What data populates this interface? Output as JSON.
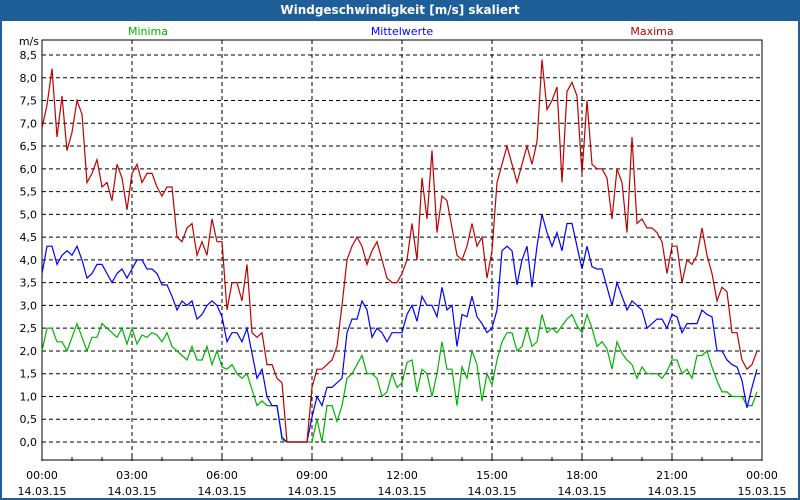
{
  "chart_data": {
    "type": "line",
    "title": "Windgeschwindigkeit [m/s] skaliert",
    "ylabel": "m/s",
    "ylim": [
      0,
      8.5
    ],
    "y_ticks": [
      "0,0",
      "0,5",
      "1,0",
      "1,5",
      "2,0",
      "2,5",
      "3,0",
      "3,5",
      "4,0",
      "4,5",
      "5,0",
      "5,5",
      "6,0",
      "6,5",
      "7,0",
      "7,5",
      "8,0",
      "8,5"
    ],
    "x_range_hours": [
      0,
      24
    ],
    "x_ticks": [
      {
        "time": "00:00",
        "date": "14.03.15"
      },
      {
        "time": "03:00",
        "date": "14.03.15"
      },
      {
        "time": "06:00",
        "date": "14.03.15"
      },
      {
        "time": "09:00",
        "date": "14.03.15"
      },
      {
        "time": "12:00",
        "date": "14.03.15"
      },
      {
        "time": "15:00",
        "date": "14.03.15"
      },
      {
        "time": "18:00",
        "date": "14.03.15"
      },
      {
        "time": "21:00",
        "date": "14.03.15"
      },
      {
        "time": "00:00",
        "date": "15.03.15"
      }
    ],
    "grid": true,
    "sample_interval_minutes": 10,
    "series": [
      {
        "name": "Minima",
        "color": "#00b400",
        "values": [
          2.0,
          2.5,
          2.5,
          2.2,
          2.2,
          2.0,
          2.3,
          2.6,
          2.3,
          2.0,
          2.3,
          2.3,
          2.6,
          2.5,
          2.4,
          2.3,
          2.5,
          2.15,
          2.5,
          2.15,
          2.35,
          2.3,
          2.4,
          2.35,
          2.2,
          2.4,
          2.1,
          2.0,
          1.9,
          1.8,
          2.1,
          1.8,
          1.8,
          2.1,
          1.7,
          2.0,
          1.65,
          1.6,
          1.7,
          1.5,
          1.4,
          1.5,
          1.15,
          0.8,
          0.9,
          0.8,
          0.8,
          0.8,
          0.05,
          0,
          0,
          0,
          0,
          0,
          0,
          0.5,
          0,
          0.8,
          0.8,
          0.45,
          0.8,
          1.4,
          1.5,
          1.7,
          1.9,
          1.5,
          1.5,
          1.4,
          1.0,
          1.1,
          1.5,
          1.2,
          1.3,
          1.75,
          1.8,
          1.1,
          1.6,
          1.5,
          1.0,
          1.5,
          2.2,
          1.6,
          1.6,
          0.8,
          1.65,
          1.4,
          2.0,
          1.7,
          0.9,
          1.5,
          1.25,
          1.8,
          2.2,
          2.4,
          2.4,
          2.0,
          2.1,
          2.5,
          2.1,
          2.2,
          2.8,
          2.4,
          2.5,
          2.4,
          2.55,
          2.7,
          2.8,
          2.55,
          2.4,
          2.8,
          2.5,
          2.1,
          2.2,
          2.05,
          1.6,
          2.2,
          1.95,
          1.8,
          1.7,
          1.4,
          1.65,
          1.5,
          1.5,
          1.5,
          1.4,
          1.55,
          1.8,
          1.8,
          1.5,
          1.6,
          1.4,
          1.9,
          1.9,
          2.0,
          1.65,
          1.35,
          1.1,
          1.1,
          1.0,
          1.0,
          1.0,
          0.8,
          0.8,
          1.1
        ]
      },
      {
        "name": "Mittelwerte",
        "color": "#0000ff",
        "values": [
          3.7,
          4.3,
          4.3,
          3.9,
          4.1,
          4.2,
          4.1,
          4.3,
          4.0,
          3.6,
          3.7,
          3.9,
          3.9,
          3.7,
          3.5,
          3.7,
          3.8,
          3.6,
          3.8,
          4.0,
          4.0,
          3.8,
          3.8,
          3.7,
          3.45,
          3.45,
          3.2,
          2.9,
          3.1,
          3.0,
          3.1,
          2.7,
          2.8,
          3.0,
          3.1,
          3.0,
          2.75,
          2.2,
          2.4,
          2.4,
          2.2,
          2.5,
          1.95,
          1.4,
          1.6,
          1.0,
          0.8,
          0.8,
          0.1,
          0,
          0,
          0,
          0,
          0,
          0.55,
          1.0,
          0.8,
          1.2,
          1.2,
          1.3,
          1.4,
          2.4,
          2.7,
          2.7,
          3.1,
          2.9,
          2.3,
          2.5,
          2.4,
          2.2,
          2.4,
          2.4,
          2.4,
          2.8,
          3.0,
          2.65,
          3.2,
          3.0,
          3.0,
          2.75,
          3.4,
          2.9,
          3.0,
          2.1,
          2.8,
          2.75,
          3.2,
          2.75,
          2.6,
          2.4,
          2.5,
          2.9,
          4.2,
          4.3,
          4.2,
          3.45,
          4.0,
          4.3,
          3.4,
          4.3,
          5.0,
          4.6,
          4.3,
          4.6,
          4.2,
          4.8,
          4.8,
          4.3,
          3.8,
          4.3,
          3.85,
          3.8,
          3.8,
          3.4,
          3.0,
          3.5,
          3.2,
          2.9,
          3.1,
          3.0,
          2.9,
          2.5,
          2.6,
          2.7,
          2.7,
          2.5,
          2.8,
          2.75,
          2.4,
          2.6,
          2.6,
          2.6,
          2.9,
          2.8,
          2.75,
          2.0,
          2.0,
          1.8,
          1.7,
          1.65,
          1.35,
          0.75,
          1.2,
          1.6
        ]
      },
      {
        "name": "Maxima",
        "color": "#c00000",
        "values": [
          6.9,
          7.4,
          8.2,
          6.7,
          7.6,
          6.4,
          6.8,
          7.5,
          7.2,
          5.7,
          5.9,
          6.2,
          5.6,
          5.7,
          5.3,
          6.1,
          5.8,
          5.1,
          5.9,
          6.1,
          5.7,
          5.9,
          5.9,
          5.6,
          5.4,
          5.6,
          5.6,
          4.5,
          4.4,
          4.7,
          4.8,
          4.1,
          4.4,
          4.1,
          4.9,
          4.4,
          4.4,
          2.9,
          3.5,
          3.5,
          3.1,
          3.9,
          2.4,
          2.3,
          2.4,
          1.7,
          1.7,
          1.4,
          1.3,
          0,
          0,
          0,
          0,
          0,
          1.2,
          1.6,
          1.6,
          1.7,
          1.8,
          2.1,
          3.0,
          4.0,
          4.3,
          4.5,
          4.3,
          3.9,
          4.2,
          4.4,
          4.0,
          3.6,
          3.5,
          3.5,
          3.7,
          4.0,
          4.8,
          4.0,
          5.8,
          4.9,
          6.4,
          4.6,
          5.4,
          5.3,
          4.7,
          4.1,
          4.0,
          4.3,
          4.8,
          4.3,
          4.5,
          3.6,
          4.2,
          5.7,
          6.1,
          6.5,
          6.1,
          5.7,
          6.1,
          6.5,
          6.1,
          6.6,
          8.4,
          7.3,
          7.5,
          7.8,
          5.7,
          7.7,
          7.9,
          7.6,
          5.9,
          7.5,
          6.1,
          6.0,
          6.0,
          5.8,
          4.9,
          6.0,
          5.7,
          4.6,
          6.7,
          4.8,
          4.9,
          4.7,
          4.7,
          4.6,
          4.4,
          3.7,
          4.3,
          4.3,
          3.5,
          4.0,
          3.9,
          4.1,
          4.7,
          4.1,
          3.7,
          3.1,
          3.4,
          3.3,
          2.4,
          2.4,
          1.8,
          1.6,
          1.7,
          2.0
        ]
      }
    ]
  }
}
